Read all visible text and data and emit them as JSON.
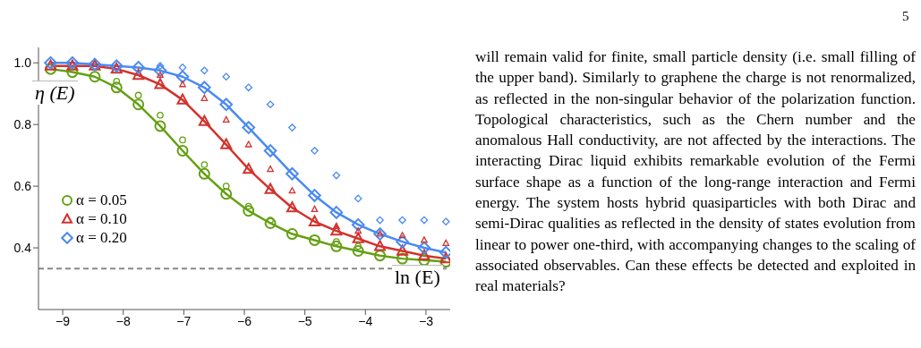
{
  "chart_data": {
    "type": "line",
    "xlabel": "ln (E)",
    "ylabel": "η (E)",
    "x": [
      -9.2,
      -8.84,
      -8.47,
      -8.11,
      -7.75,
      -7.39,
      -7.02,
      -6.66,
      -6.3,
      -5.93,
      -5.57,
      -5.21,
      -4.84,
      -4.48,
      -4.12,
      -3.76,
      -3.39,
      -3.03,
      -2.67
    ],
    "series": [
      {
        "name": "α = 0.05",
        "type": "line",
        "marker": "circle",
        "color": "#64a014",
        "values": [
          0.98,
          0.97,
          0.955,
          0.92,
          0.865,
          0.795,
          0.715,
          0.64,
          0.575,
          0.52,
          0.48,
          0.445,
          0.425,
          0.405,
          0.39,
          0.375,
          0.365,
          0.36,
          0.355
        ]
      },
      {
        "name": "α = 0.10",
        "type": "line",
        "marker": "triangle",
        "color": "#d2322d",
        "values": [
          0.99,
          0.99,
          0.99,
          0.98,
          0.96,
          0.93,
          0.88,
          0.81,
          0.735,
          0.655,
          0.59,
          0.53,
          0.485,
          0.455,
          0.43,
          0.405,
          0.39,
          0.375,
          0.365
        ]
      },
      {
        "name": "α = 0.20",
        "type": "line",
        "marker": "diamond",
        "color": "#4a8af0",
        "values": [
          1.0,
          1.0,
          0.995,
          0.99,
          0.985,
          0.975,
          0.955,
          0.92,
          0.865,
          0.79,
          0.715,
          0.64,
          0.57,
          0.515,
          0.475,
          0.445,
          0.42,
          0.4,
          0.385
        ]
      },
      {
        "type": "scatter",
        "marker": "circle",
        "color": "#64a014",
        "values": [
          null,
          null,
          null,
          0.94,
          0.895,
          0.83,
          0.75,
          0.67,
          0.6,
          0.535,
          0.49,
          null,
          null,
          0.42,
          0.405,
          null,
          null,
          null,
          null
        ]
      },
      {
        "type": "scatter",
        "marker": "triangle",
        "color": "#d2322d",
        "values": [
          null,
          null,
          null,
          null,
          null,
          0.96,
          0.93,
          0.885,
          0.815,
          0.735,
          0.655,
          0.585,
          0.525,
          0.47,
          0.455,
          0.445,
          0.44,
          0.425,
          0.415
        ]
      },
      {
        "type": "scatter",
        "marker": "diamond",
        "color": "#4a8af0",
        "values": [
          null,
          null,
          null,
          null,
          null,
          0.99,
          0.985,
          0.975,
          0.955,
          0.92,
          0.865,
          0.79,
          0.715,
          0.635,
          0.56,
          0.49,
          0.49,
          0.49,
          0.485
        ]
      }
    ],
    "xlim": [
      -9.4,
      -2.6
    ],
    "xticks": [
      {
        "value": -9,
        "label": "−9"
      },
      {
        "value": -8,
        "label": "−8"
      },
      {
        "value": -7,
        "label": "−7"
      },
      {
        "value": -6,
        "label": "−6"
      },
      {
        "value": -5,
        "label": "−5"
      },
      {
        "value": -4,
        "label": "−4"
      },
      {
        "value": -3,
        "label": "−3"
      }
    ],
    "ylim": [
      0.2,
      1.05
    ],
    "yticks": [
      0.4,
      0.6,
      0.8,
      {
        "value": 1.0,
        "label": "1.0"
      }
    ],
    "ref_lines": [
      {
        "axis": "y",
        "value": 0.333,
        "color": "#888888",
        "line_style": "dashed"
      }
    ],
    "legend": "left",
    "grid": false,
    "annotations": [
      "5",
      "will remain valid for finite, small particle density (i.e. small filling of the upper band). Similarly to graphene the charge is not renormalized, as reflected in the non-singular behavior of the polarization function. Topological characteristics, such as the Chern number and the anomalous Hall conductivity, are not affected by the interactions. The interacting Dirac liquid exhibits remarkable evolution of the Fermi surface shape as a function of the long-range interaction and Fermi energy. The system hosts hybrid quasiparticles with both Dirac and semi-Dirac qualities as reflected in the density of states evolution from linear to power one-third, with accompanying changes to the scaling of associated observables. Can these effects be detected and exploited in real materials?"
    ]
  }
}
